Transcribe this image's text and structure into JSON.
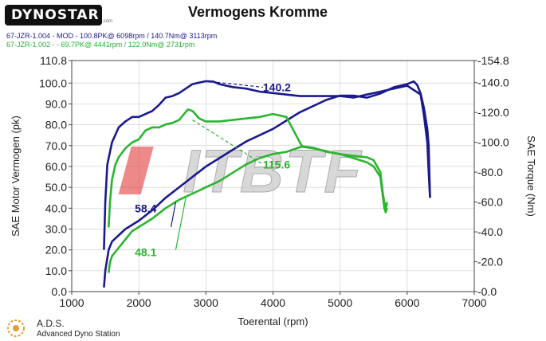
{
  "header": {
    "logo_text": "DYNOSTAR",
    "logo_sub": ".com",
    "title": "Vermogens Kromme",
    "runs": [
      {
        "label": "67-JZR-1.004 - MOD - 100.8PK@ 6098rpm / 140.7Nm@ 3113rpm",
        "color": "#1a1a8c"
      },
      {
        "label": "67-JZR-1.002 - - 69.7PK@ 4441rpm / 122.0Nm@ 2731rpm",
        "color": "#22b030"
      }
    ]
  },
  "footer": {
    "brand": "A.D.S.",
    "subtitle": "Advanced Dyno Station"
  },
  "watermark": "ITBTF",
  "chart_data": {
    "type": "line",
    "title": "Vermogens Kromme",
    "xlabel": "Toerental (rpm)",
    "ylabel": "SAE Motor Vermogen (pk)",
    "y2label": "SAE Torque (Nm)",
    "xlim": [
      1000,
      7000
    ],
    "ylim": [
      0,
      110.8
    ],
    "y2lim": [
      0,
      154.8
    ],
    "x_ticks": [
      "1000",
      "2000",
      "3000",
      "4000",
      "5000",
      "6000",
      "7000"
    ],
    "y_ticks": [
      "0.0",
      "10.0",
      "20.0",
      "30.0",
      "40.0",
      "50.0",
      "60.0",
      "70.0",
      "80.0",
      "90.0",
      "100.0",
      "110.8"
    ],
    "y2_ticks": [
      "0.0",
      "20.0",
      "40.0",
      "60.0",
      "80.0",
      "100.0",
      "120.0",
      "140.0",
      "154.8"
    ],
    "grid": true,
    "series": [
      {
        "axis": "y2",
        "color": "#1a1a8c",
        "x": [
          1480,
          1500,
          1530,
          1600,
          1700,
          1800,
          1900,
          2000,
          2100,
          2200,
          2300,
          2400,
          2500,
          2600,
          2700,
          2800,
          2900,
          3000,
          3113,
          3200,
          3400,
          3600,
          3800,
          4000,
          4200,
          4400,
          4600,
          4800,
          5000,
          5200,
          5400,
          5600,
          5800,
          6000,
          6200,
          6250,
          6300,
          6320,
          6340
        ],
        "y": [
          28,
          60,
          85,
          100,
          110,
          114,
          117,
          117,
          119,
          121,
          125,
          130,
          131,
          133,
          136,
          139,
          140,
          141,
          140.7,
          139,
          137,
          136,
          134,
          133,
          132,
          131,
          131,
          131,
          131,
          130,
          132,
          134,
          136,
          138,
          132,
          118,
          100,
          80,
          63
        ]
      },
      {
        "axis": "y1",
        "color": "#1a1a8c",
        "x": [
          1480,
          1500,
          1550,
          1600,
          1800,
          2000,
          2200,
          2400,
          2600,
          2800,
          3000,
          3200,
          3400,
          3600,
          3800,
          4000,
          4200,
          4400,
          4600,
          4800,
          5000,
          5200,
          5400,
          5600,
          5800,
          6000,
          6098,
          6150,
          6200,
          6250,
          6300,
          6320,
          6340
        ],
        "y": [
          2,
          10,
          20,
          24,
          30,
          34,
          39,
          45,
          50,
          55,
          60,
          64,
          68,
          72,
          75,
          78,
          82,
          86,
          89,
          92,
          94,
          94,
          93,
          95,
          98,
          99.5,
          100.8,
          99,
          95,
          88,
          78,
          70,
          45
        ]
      },
      {
        "axis": "y2",
        "color": "#2ab52e",
        "x": [
          1550,
          1570,
          1600,
          1650,
          1700,
          1800,
          1900,
          2000,
          2100,
          2200,
          2300,
          2400,
          2500,
          2600,
          2731,
          2800,
          2900,
          3000,
          3200,
          3400,
          3600,
          3800,
          4000,
          4200,
          4400,
          4441,
          4600,
          4800,
          5000,
          5200,
          5400,
          5500,
          5600,
          5640,
          5660,
          5680,
          5700
        ],
        "y": [
          43,
          60,
          75,
          85,
          90,
          96,
          100,
          102,
          108,
          110,
          110,
          112,
          113,
          115,
          122,
          121,
          116,
          114,
          114,
          115,
          116,
          117,
          119,
          117,
          100,
          97,
          96,
          94,
          92,
          91,
          90,
          88,
          80,
          65,
          60,
          55,
          60
        ]
      },
      {
        "axis": "y1",
        "color": "#2ab52e",
        "x": [
          1550,
          1570,
          1600,
          1700,
          1800,
          1900,
          2000,
          2200,
          2400,
          2600,
          2800,
          3000,
          3200,
          3400,
          3600,
          3800,
          4000,
          4200,
          4441,
          4600,
          4800,
          5000,
          5200,
          5400,
          5500,
          5600,
          5640,
          5660,
          5680,
          5700
        ],
        "y": [
          9,
          14,
          17,
          21,
          25,
          29,
          31,
          35,
          40,
          44,
          47,
          50,
          53,
          57,
          61,
          64,
          66,
          67,
          69.7,
          69,
          67,
          66,
          64,
          62,
          60,
          55,
          45,
          40,
          38,
          40
        ]
      }
    ],
    "annotations": [
      {
        "text": "140.2",
        "color": "#1a1a8c",
        "x": 3850,
        "y": 98
      },
      {
        "text": "58.4",
        "color": "#1a1a8c",
        "x": 1940,
        "y": 40
      },
      {
        "text": "115.6",
        "color": "#2ab52e",
        "x": 3850,
        "y": 61
      },
      {
        "text": "48.1",
        "color": "#2ab52e",
        "x": 1940,
        "y": 19
      }
    ]
  }
}
